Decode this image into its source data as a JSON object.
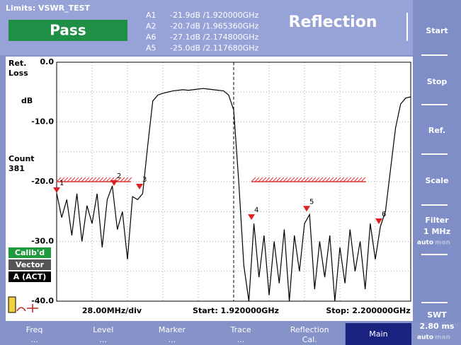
{
  "header": {
    "limits": "Limits: VSWR_TEST",
    "status": "Pass",
    "mode": "Reflection",
    "readouts": [
      {
        "label": "A1",
        "text": "-21.9dB /1.920000GHz"
      },
      {
        "label": "A2",
        "text": "-20.7dB /1.965360GHz"
      },
      {
        "label": "A6",
        "text": "-27.1dB /2.174800GHz"
      },
      {
        "label": "A5",
        "text": "-25.0dB /2.117680GHz"
      }
    ]
  },
  "softkeys": [
    {
      "label": "Start"
    },
    {
      "label": "Stop"
    },
    {
      "label": "Ref."
    },
    {
      "label": "Scale"
    },
    {
      "label": "Filter",
      "value": "1 MHz",
      "auto": "auto",
      "man": "man"
    },
    {
      "label": "SWT",
      "value": "2.80 ms",
      "auto": "auto",
      "man": "man"
    }
  ],
  "menu": [
    {
      "label": "Freq",
      "sub": "..."
    },
    {
      "label": "Level",
      "sub": "..."
    },
    {
      "label": "Marker",
      "sub": "..."
    },
    {
      "label": "Trace",
      "sub": "..."
    },
    {
      "label": "Reflection",
      "sub": "Cal."
    },
    {
      "label": "Main",
      "active": true
    }
  ],
  "side": {
    "ret": "Ret.",
    "loss": "Loss",
    "unit": "dB",
    "count_label": "Count",
    "count": "381",
    "badges": [
      {
        "text": "Calib'd",
        "color": "#1f9a3e"
      },
      {
        "text": "Vector",
        "color": "#555555"
      },
      {
        "text": "A (ACT)",
        "color": "#000000"
      }
    ]
  },
  "footer": {
    "div": "28.00MHz/div",
    "start": "Start: 1.920000GHz",
    "stop": "Stop: 2.200000GHz"
  },
  "chart_data": {
    "type": "line",
    "color": "#000000",
    "xlim": [
      1.92,
      2.2
    ],
    "ylim": [
      -40,
      0
    ],
    "yticks": [
      {
        "value": 0,
        "label": "0.0"
      },
      {
        "value": -10,
        "label": "-10.0"
      },
      {
        "value": -20,
        "label": "-20.0"
      },
      {
        "value": -30,
        "label": "-30.0"
      },
      {
        "value": -40,
        "label": "-40.0"
      }
    ],
    "minor_yticks": [
      -5,
      -15,
      -25,
      -35
    ],
    "xticks": [
      1.92,
      1.948,
      1.976,
      2.004,
      2.032,
      2.06,
      2.088,
      2.116,
      2.144,
      2.172,
      2.2
    ],
    "grid": true,
    "center_line_x": 2.06,
    "limit_color": "#e03030",
    "limit_lines": [
      {
        "x": [
          1.92,
          1.9788
        ],
        "y": -20
      },
      {
        "x": [
          2.074,
          2.1647
        ],
        "y": -20
      }
    ],
    "marker_color": "#e02020",
    "markers": [
      {
        "label": "1",
        "x": 1.92,
        "y": -21.9
      },
      {
        "label": "2",
        "x": 1.96536,
        "y": -20.7
      },
      {
        "label": "3",
        "x": 1.9855,
        "y": -21.3
      },
      {
        "label": "4",
        "x": 2.074,
        "y": -26.4
      },
      {
        "label": "5",
        "x": 2.11768,
        "y": -25.0
      },
      {
        "label": "6",
        "x": 2.1748,
        "y": -27.1
      }
    ],
    "x": [
      1.92,
      1.924,
      1.928,
      1.932,
      1.936,
      1.94,
      1.944,
      1.948,
      1.952,
      1.956,
      1.96,
      1.964,
      1.968,
      1.972,
      1.976,
      1.98,
      1.984,
      1.988,
      1.992,
      1.996,
      2.0,
      2.004,
      2.008,
      2.012,
      2.016,
      2.02,
      2.024,
      2.028,
      2.032,
      2.036,
      2.04,
      2.044,
      2.048,
      2.052,
      2.056,
      2.06,
      2.064,
      2.068,
      2.072,
      2.076,
      2.08,
      2.084,
      2.088,
      2.092,
      2.096,
      2.1,
      2.104,
      2.108,
      2.112,
      2.116,
      2.12,
      2.124,
      2.128,
      2.132,
      2.136,
      2.14,
      2.144,
      2.148,
      2.152,
      2.156,
      2.16,
      2.164,
      2.168,
      2.172,
      2.176,
      2.18,
      2.184,
      2.188,
      2.192,
      2.196,
      2.2
    ],
    "values": [
      -21.9,
      -26,
      -23,
      -29,
      -22,
      -30,
      -24,
      -27,
      -22,
      -31,
      -23,
      -20.7,
      -28,
      -25,
      -33,
      -22.5,
      -23,
      -22,
      -14,
      -6.5,
      -5.5,
      -5.2,
      -5.0,
      -4.8,
      -4.7,
      -4.6,
      -4.7,
      -4.6,
      -4.5,
      -4.4,
      -4.5,
      -4.6,
      -4.7,
      -4.8,
      -5.5,
      -8,
      -20,
      -34,
      -40,
      -27,
      -36,
      -29,
      -39,
      -30,
      -37,
      -28,
      -40,
      -29,
      -35,
      -27,
      -25.5,
      -38,
      -30,
      -36,
      -29,
      -40,
      -31,
      -37,
      -28,
      -35,
      -30,
      -38,
      -27,
      -33,
      -27.5,
      -25,
      -18,
      -11,
      -7,
      -6,
      -5.8
    ]
  }
}
